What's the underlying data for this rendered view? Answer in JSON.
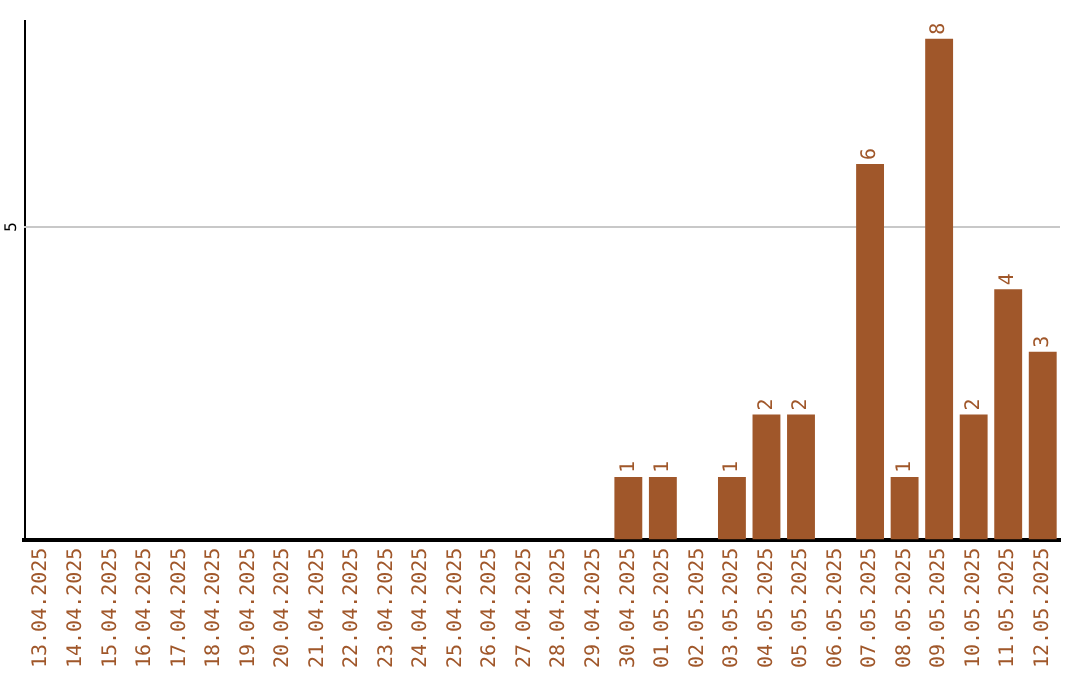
{
  "chart_data": {
    "type": "bar",
    "categories": [
      "13.04.2025",
      "14.04.2025",
      "15.04.2025",
      "16.04.2025",
      "17.04.2025",
      "18.04.2025",
      "19.04.2025",
      "20.04.2025",
      "21.04.2025",
      "22.04.2025",
      "23.04.2025",
      "24.04.2025",
      "25.04.2025",
      "26.04.2025",
      "27.04.2025",
      "28.04.2025",
      "29.04.2025",
      "30.04.2025",
      "01.05.2025",
      "02.05.2025",
      "03.05.2025",
      "04.05.2025",
      "05.05.2025",
      "06.05.2025",
      "07.05.2025",
      "08.05.2025",
      "09.05.2025",
      "10.05.2025",
      "11.05.2025",
      "12.05.2025"
    ],
    "values": [
      null,
      null,
      null,
      null,
      null,
      null,
      null,
      null,
      null,
      null,
      null,
      null,
      null,
      null,
      null,
      null,
      null,
      1,
      1,
      null,
      1,
      2,
      2,
      null,
      6,
      1,
      8,
      2,
      4,
      3
    ],
    "data_labels": true,
    "color": "#a0572a",
    "ylim": [
      0,
      8.3
    ],
    "ref_lines": [
      {
        "axis": "y",
        "value": 5,
        "label": "5",
        "color": "#c8c8c8"
      }
    ],
    "legend": false
  }
}
